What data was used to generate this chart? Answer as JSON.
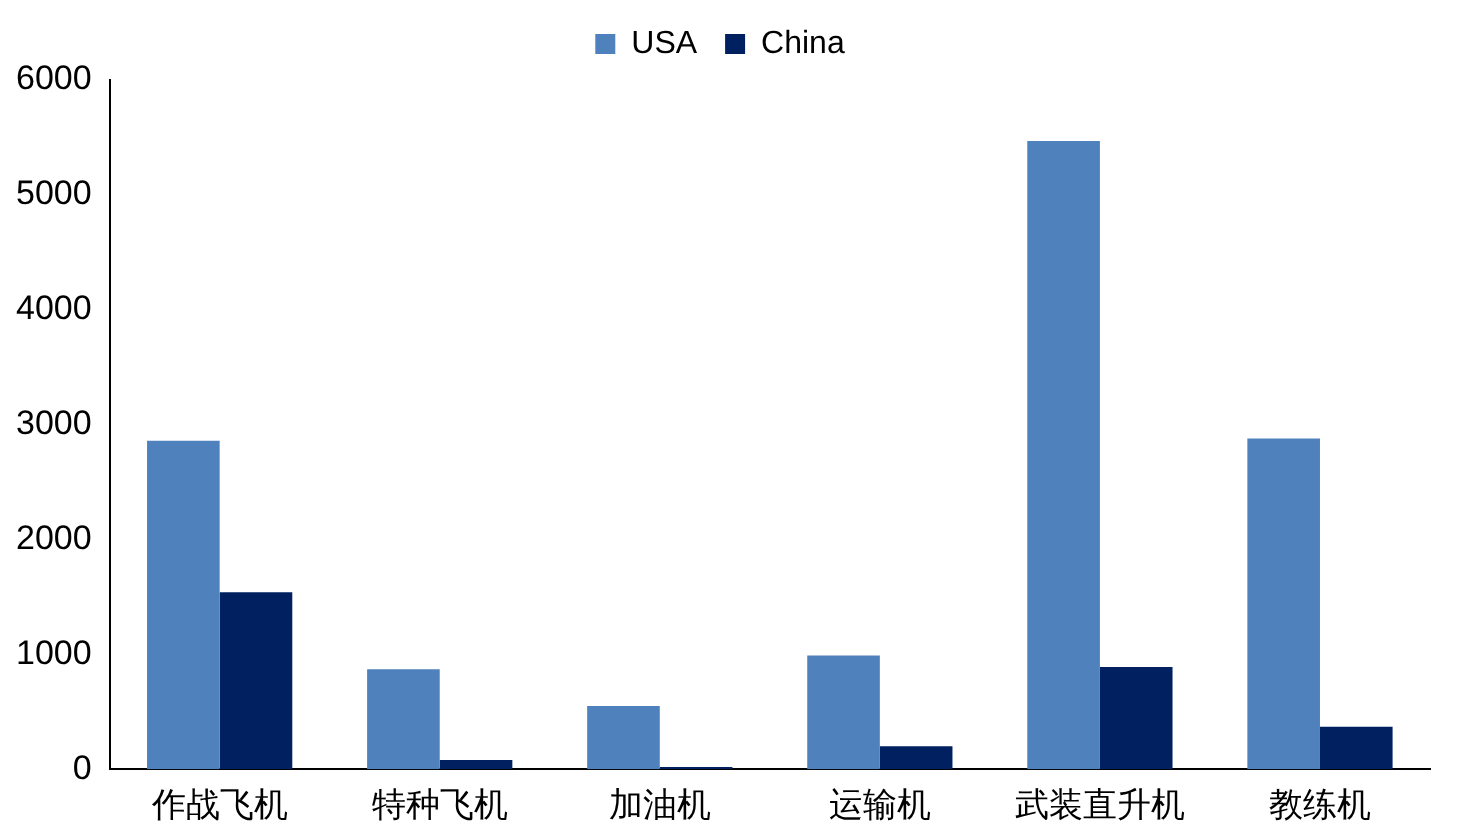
{
  "chart_data": {
    "type": "bar",
    "categories": [
      "作战飞机",
      "特种飞机",
      "加油机",
      "运输机",
      "武装直升机",
      "教练机"
    ],
    "series": [
      {
        "name": "USA",
        "color": "#4f81bd",
        "values": [
          2860,
          870,
          550,
          990,
          5470,
          2880
        ]
      },
      {
        "name": "China",
        "color": "#002060",
        "values": [
          1540,
          80,
          20,
          200,
          890,
          370
        ]
      }
    ],
    "ylim": [
      0,
      6000
    ],
    "yticks": [
      0,
      1000,
      2000,
      3000,
      4000,
      5000,
      6000
    ],
    "grid": false,
    "legend": "top"
  }
}
